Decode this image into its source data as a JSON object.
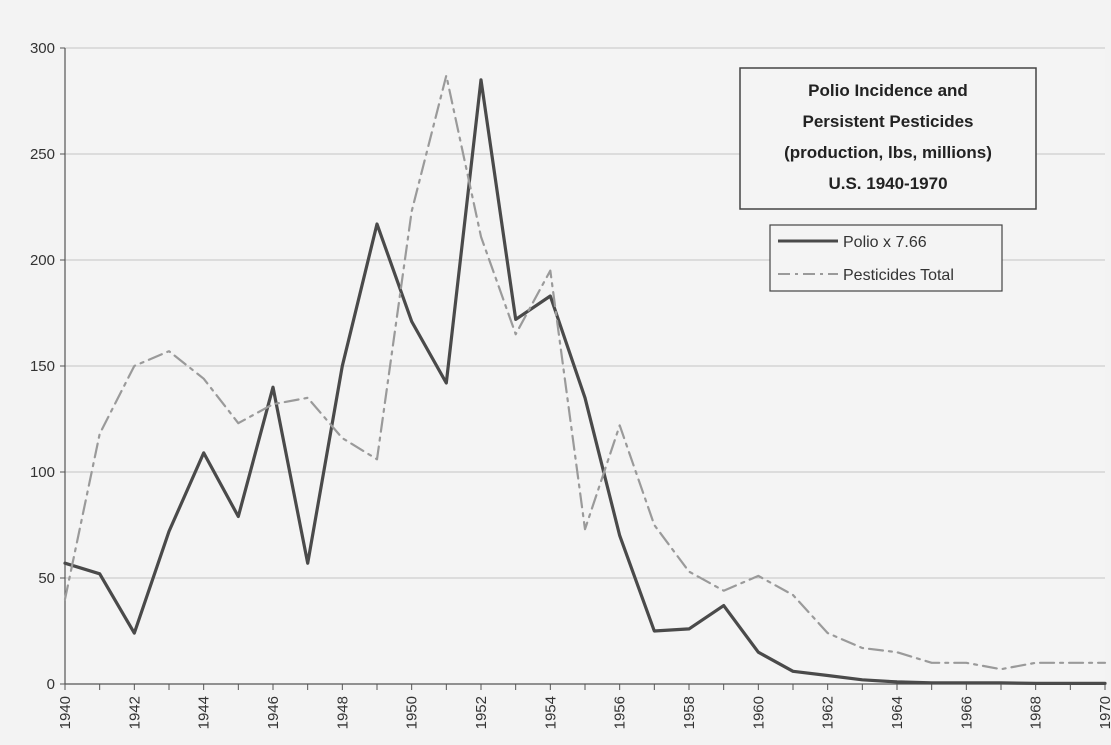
{
  "chart_data": {
    "type": "line",
    "title_lines": [
      "Polio Incidence and",
      "Persistent Pesticides",
      "(production, lbs, millions)",
      "U.S.  1940-1970"
    ],
    "xlabel": "",
    "ylabel": "",
    "ylim": [
      0,
      300
    ],
    "xlim": [
      1940,
      1970
    ],
    "yticks": [
      0,
      50,
      100,
      150,
      200,
      250,
      300
    ],
    "xticks": [
      1940,
      1942,
      1944,
      1946,
      1948,
      1950,
      1952,
      1954,
      1956,
      1958,
      1960,
      1962,
      1964,
      1966,
      1968,
      1970
    ],
    "xtick_labels": [
      "1940",
      "1942",
      "1944",
      "1946",
      "1948",
      "1950",
      "1952",
      "1954",
      "1956",
      "1958",
      "1960",
      "1962",
      "1964",
      "1966",
      "1968",
      "1970"
    ],
    "grid": true,
    "legend_position": "top-right",
    "series": [
      {
        "name": "Polio x 7.66",
        "color": "#4a4a4a",
        "style": "solid",
        "points": [
          [
            1940,
            57
          ],
          [
            1941,
            52
          ],
          [
            1942,
            24
          ],
          [
            1943,
            72
          ],
          [
            1944,
            109
          ],
          [
            1945,
            79
          ],
          [
            1946,
            140
          ],
          [
            1947,
            57
          ],
          [
            1948,
            150
          ],
          [
            1949,
            217
          ],
          [
            1950,
            171
          ],
          [
            1951,
            142
          ],
          [
            1952,
            285
          ],
          [
            1953,
            172
          ],
          [
            1954,
            183
          ],
          [
            1955,
            135
          ],
          [
            1956,
            70
          ],
          [
            1957,
            25
          ],
          [
            1958,
            26
          ],
          [
            1959,
            37
          ],
          [
            1960,
            15
          ],
          [
            1961,
            6
          ],
          [
            1962,
            4
          ],
          [
            1963,
            2
          ],
          [
            1964,
            1
          ],
          [
            1965,
            0.5
          ],
          [
            1966,
            0.5
          ],
          [
            1967,
            0.5
          ],
          [
            1968,
            0.3
          ],
          [
            1969,
            0.3
          ],
          [
            1970,
            0.3
          ]
        ]
      },
      {
        "name": "Pesticides Total",
        "color": "#9a9a9a",
        "style": "dashdot",
        "points": [
          [
            1940,
            40
          ],
          [
            1941,
            118
          ],
          [
            1942,
            150
          ],
          [
            1943,
            157
          ],
          [
            1944,
            144
          ],
          [
            1945,
            123
          ],
          [
            1946,
            132
          ],
          [
            1947,
            135
          ],
          [
            1948,
            116
          ],
          [
            1949,
            106
          ],
          [
            1950,
            223
          ],
          [
            1951,
            287
          ],
          [
            1952,
            211
          ],
          [
            1953,
            165
          ],
          [
            1954,
            195
          ],
          [
            1955,
            73
          ],
          [
            1956,
            122
          ],
          [
            1957,
            75
          ],
          [
            1958,
            53
          ],
          [
            1959,
            44
          ],
          [
            1960,
            51
          ],
          [
            1961,
            42
          ],
          [
            1962,
            24
          ],
          [
            1963,
            17
          ],
          [
            1964,
            15
          ],
          [
            1965,
            10
          ],
          [
            1966,
            10
          ],
          [
            1967,
            7
          ],
          [
            1968,
            10
          ],
          [
            1969,
            10
          ],
          [
            1970,
            10
          ]
        ]
      }
    ]
  },
  "legend": {
    "polio_label": "Polio x 7.66",
    "pesticides_label": "Pesticides Total"
  }
}
